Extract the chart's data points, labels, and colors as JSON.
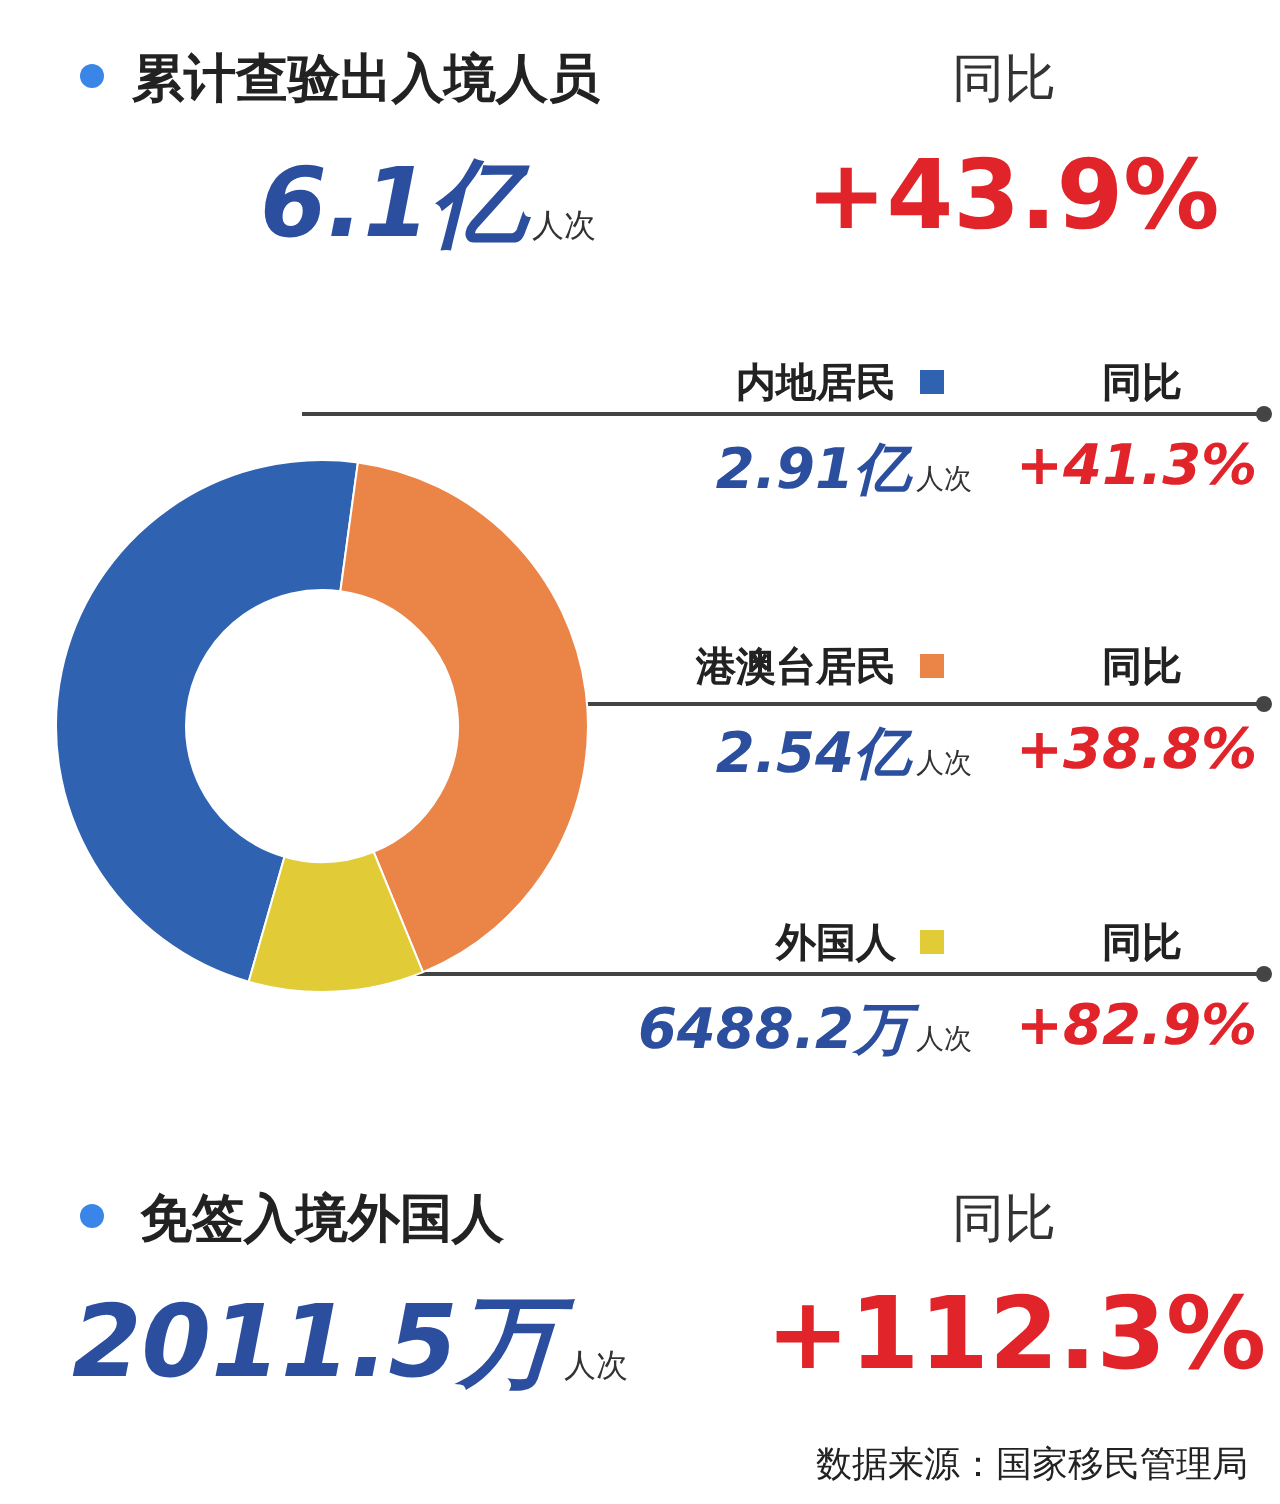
{
  "chart_data": {
    "type": "donut",
    "title": "累计查验出入境人员",
    "categories": [
      "内地居民",
      "港澳台居民",
      "外国人"
    ],
    "values": [
      47.71,
      41.65,
      10.64
    ],
    "colors": [
      "#2f62b0",
      "#ea8547",
      "#e1cb36"
    ],
    "legend": "right",
    "annotations": [
      "同比",
      "6.1亿人次",
      "+43.9%",
      "同比",
      "+41.3%",
      "同比",
      "+38.8%",
      "同比",
      "+82.9%",
      "免签入境外国人",
      "同比",
      "2011.5万人次",
      "+112.3%",
      "数据来源：国家移民管理局",
      "2.91亿人次",
      "2.54亿人次",
      "6488.2万人次"
    ]
  }
}
